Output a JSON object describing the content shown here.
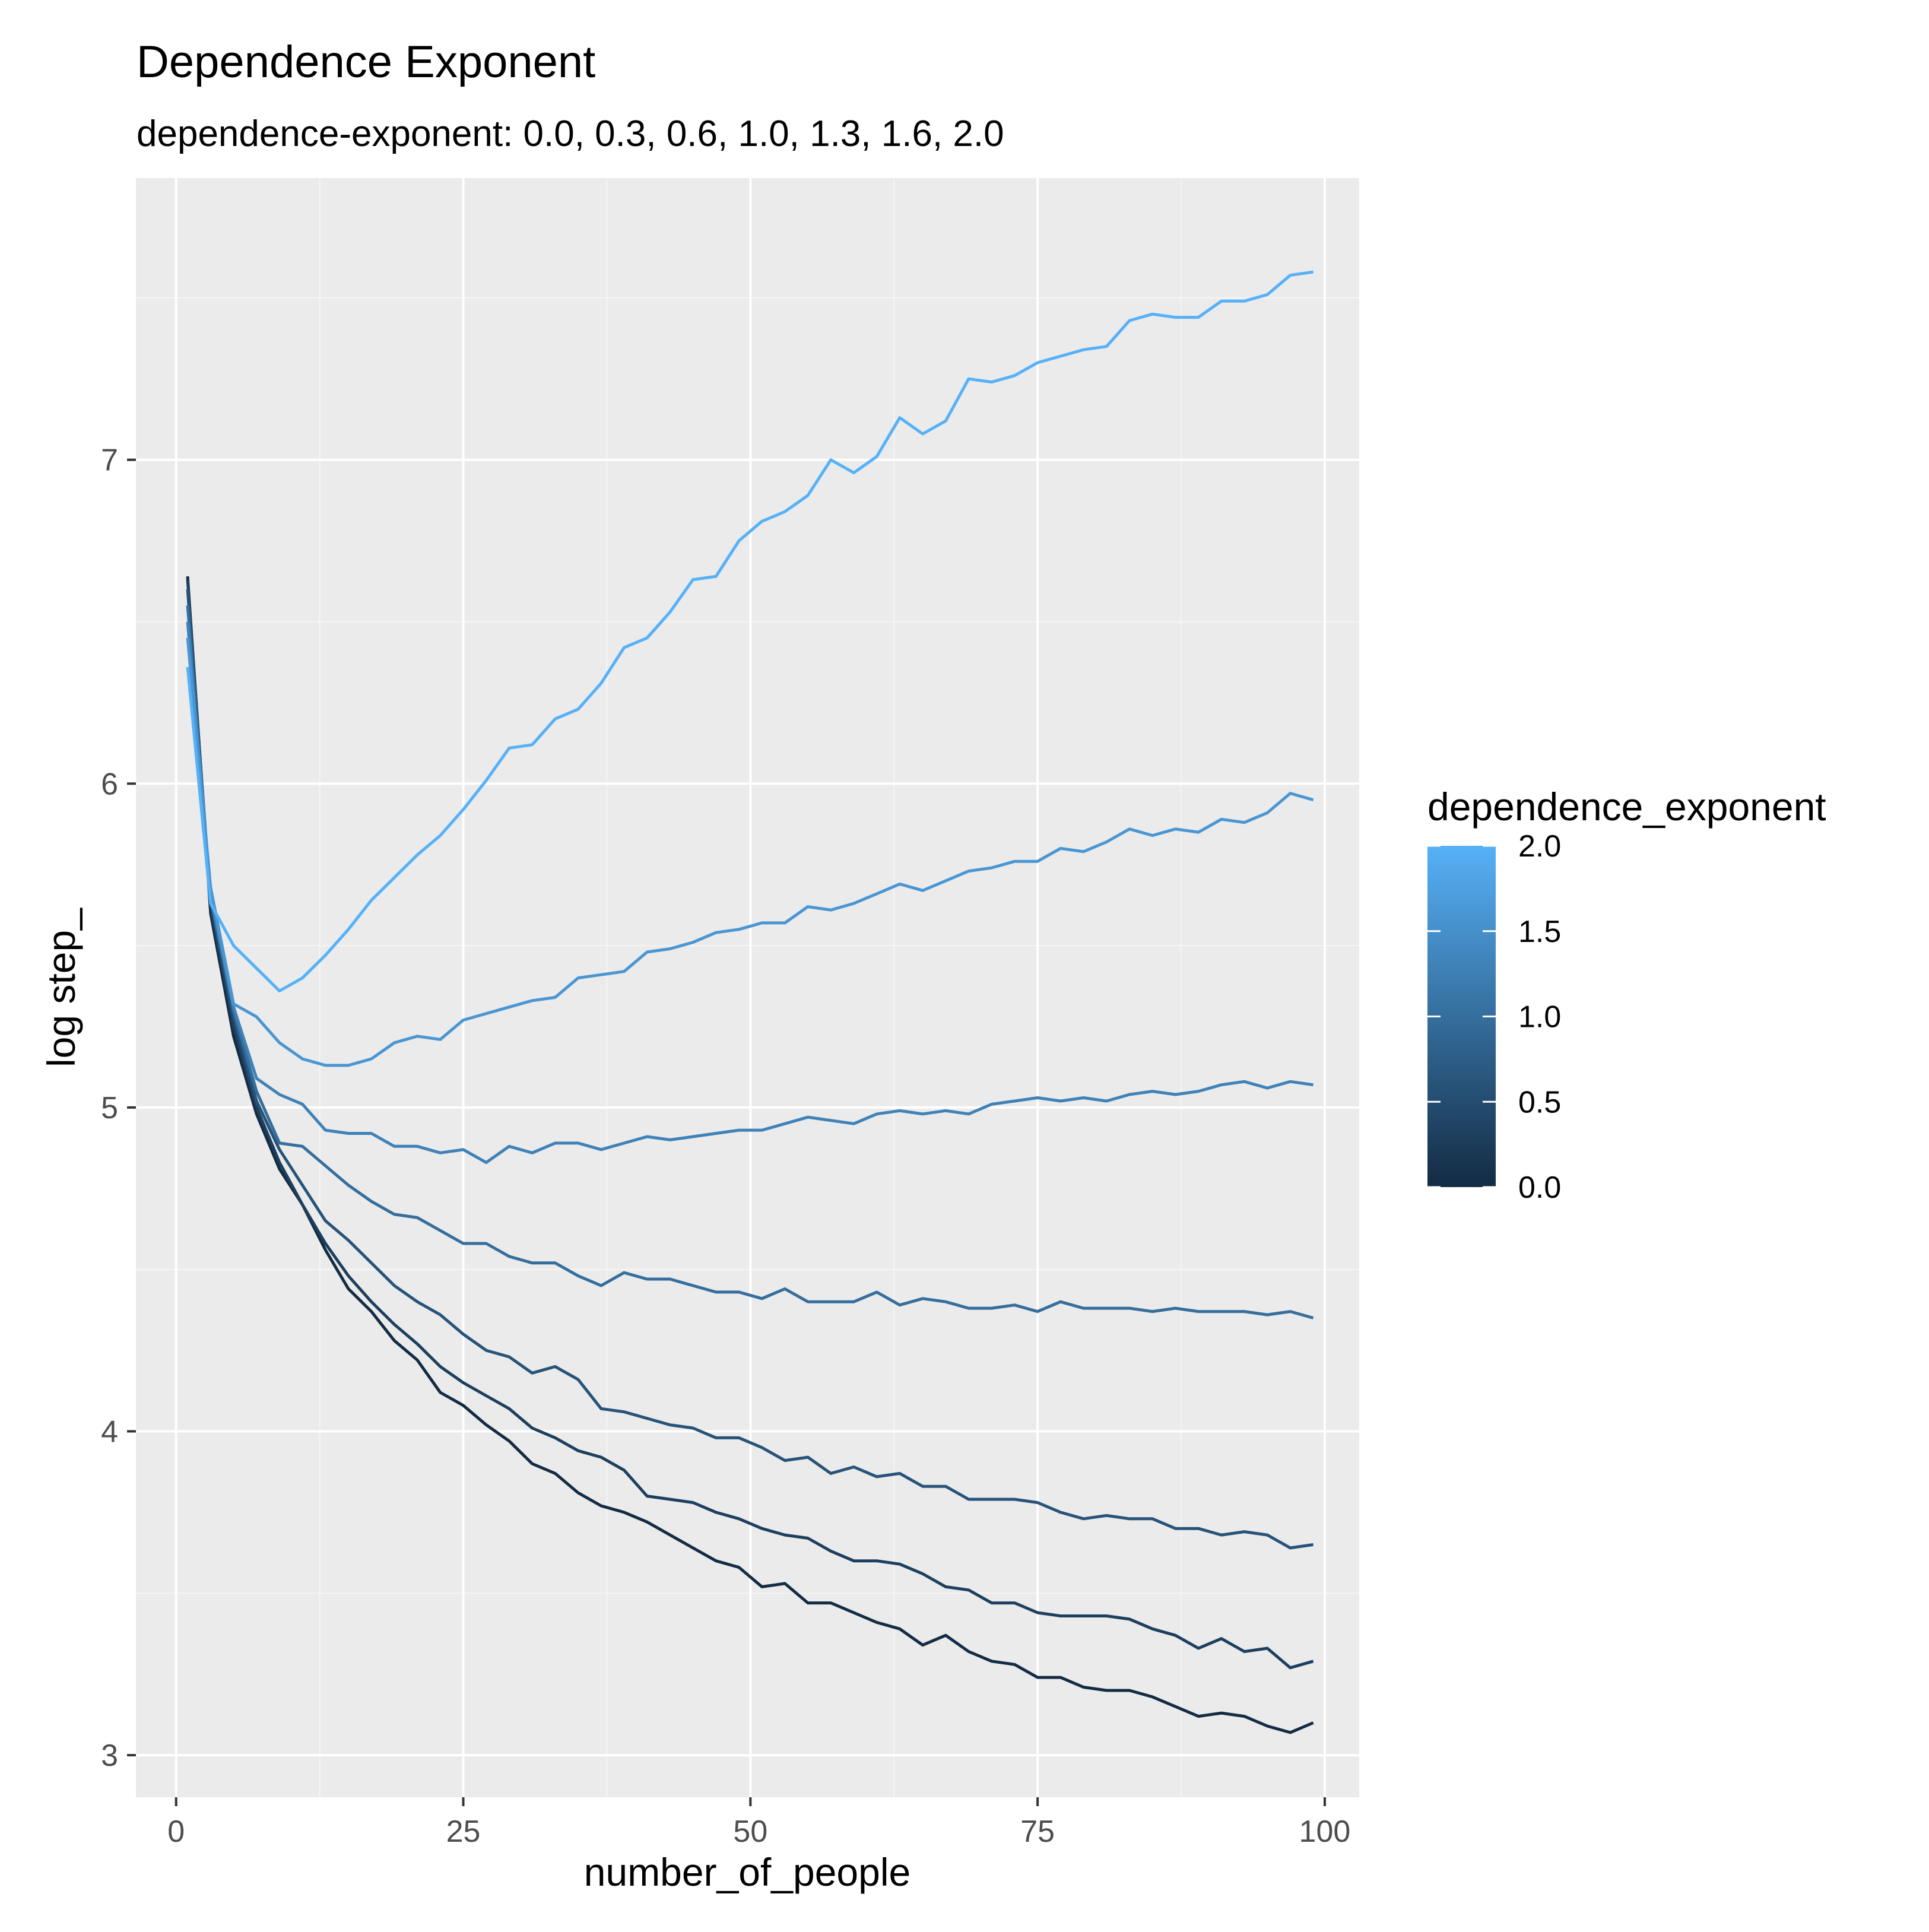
{
  "chart_data": {
    "type": "line",
    "title": "Dependence Exponent",
    "subtitle": "dependence-exponent: 0.0, 0.3, 0.6, 1.0, 1.3, 1.6, 2.0",
    "xlabel": "number_of_people",
    "ylabel": "log step_",
    "xlim": [
      -3.5,
      103
    ],
    "ylim": [
      2.87,
      7.87
    ],
    "x_ticks": [
      0,
      25,
      50,
      75,
      100
    ],
    "x_tick_labels": [
      "0",
      "25",
      "50",
      "75",
      "100"
    ],
    "y_ticks": [
      3,
      4,
      5,
      6,
      7
    ],
    "y_tick_labels": [
      "3",
      "4",
      "5",
      "6",
      "7"
    ],
    "grid": true,
    "legend": {
      "title": "dependence_exponent",
      "placement": "right",
      "type": "colorbar",
      "range": [
        0.0,
        2.0
      ],
      "tick_values": [
        2.0,
        1.5,
        1.0,
        0.5,
        0.0
      ],
      "tick_labels": [
        "2.0",
        "1.5",
        "1.0",
        "0.5",
        "0.0"
      ],
      "low_color": "#132B43",
      "high_color": "#56B1F7"
    },
    "colors": {
      "panel_background": "#EBEBEB",
      "grid_major": "#FFFFFF",
      "grid_minor": "#F5F5F5",
      "axis_text": "#4D4D4D",
      "tick": "#333333",
      "text": "#000000"
    },
    "x": [
      1,
      3,
      5,
      7,
      9,
      11,
      13,
      15,
      17,
      19,
      21,
      23,
      25,
      27,
      29,
      31,
      33,
      35,
      37,
      39,
      41,
      43,
      45,
      47,
      49,
      51,
      53,
      55,
      57,
      59,
      61,
      63,
      65,
      67,
      69,
      71,
      73,
      75,
      77,
      79,
      81,
      83,
      85,
      87,
      89,
      91,
      93,
      95,
      97,
      99
    ],
    "series": [
      {
        "dependence_exponent": 0.0,
        "values": [
          6.64,
          5.6,
          5.22,
          4.98,
          4.81,
          4.7,
          4.56,
          4.44,
          4.37,
          4.28,
          4.22,
          4.12,
          4.08,
          4.02,
          3.97,
          3.9,
          3.87,
          3.81,
          3.77,
          3.75,
          3.72,
          3.68,
          3.64,
          3.6,
          3.58,
          3.52,
          3.53,
          3.47,
          3.47,
          3.44,
          3.41,
          3.39,
          3.34,
          3.37,
          3.32,
          3.29,
          3.28,
          3.24,
          3.24,
          3.21,
          3.2,
          3.2,
          3.18,
          3.15,
          3.12,
          3.13,
          3.12,
          3.09,
          3.07,
          3.1
        ]
      },
      {
        "dependence_exponent": 0.3,
        "values": [
          6.63,
          5.62,
          5.25,
          5.0,
          4.83,
          4.7,
          4.58,
          4.48,
          4.4,
          4.33,
          4.27,
          4.2,
          4.15,
          4.11,
          4.07,
          4.01,
          3.98,
          3.94,
          3.92,
          3.88,
          3.8,
          3.79,
          3.78,
          3.75,
          3.73,
          3.7,
          3.68,
          3.67,
          3.63,
          3.6,
          3.6,
          3.59,
          3.56,
          3.52,
          3.51,
          3.47,
          3.47,
          3.44,
          3.43,
          3.43,
          3.43,
          3.42,
          3.39,
          3.37,
          3.33,
          3.36,
          3.32,
          3.33,
          3.27,
          3.29
        ]
      },
      {
        "dependence_exponent": 0.6,
        "values": [
          6.6,
          5.64,
          5.28,
          5.02,
          4.87,
          4.76,
          4.65,
          4.59,
          4.52,
          4.45,
          4.4,
          4.36,
          4.3,
          4.25,
          4.23,
          4.18,
          4.2,
          4.16,
          4.07,
          4.06,
          4.04,
          4.02,
          4.01,
          3.98,
          3.98,
          3.95,
          3.91,
          3.92,
          3.87,
          3.89,
          3.86,
          3.87,
          3.83,
          3.83,
          3.79,
          3.79,
          3.79,
          3.78,
          3.75,
          3.73,
          3.74,
          3.73,
          3.73,
          3.7,
          3.7,
          3.68,
          3.69,
          3.68,
          3.64,
          3.65
        ]
      },
      {
        "dependence_exponent": 1.0,
        "values": [
          6.55,
          5.65,
          5.3,
          5.05,
          4.89,
          4.88,
          4.82,
          4.76,
          4.71,
          4.67,
          4.66,
          4.62,
          4.58,
          4.58,
          4.54,
          4.52,
          4.52,
          4.48,
          4.45,
          4.49,
          4.47,
          4.47,
          4.45,
          4.43,
          4.43,
          4.41,
          4.44,
          4.4,
          4.4,
          4.4,
          4.43,
          4.39,
          4.41,
          4.4,
          4.38,
          4.38,
          4.39,
          4.37,
          4.4,
          4.38,
          4.38,
          4.38,
          4.37,
          4.38,
          4.37,
          4.37,
          4.37,
          4.36,
          4.37,
          4.35
        ]
      },
      {
        "dependence_exponent": 1.3,
        "values": [
          6.5,
          5.66,
          5.31,
          5.09,
          5.04,
          5.01,
          4.93,
          4.92,
          4.92,
          4.88,
          4.88,
          4.86,
          4.87,
          4.83,
          4.88,
          4.86,
          4.89,
          4.89,
          4.87,
          4.89,
          4.91,
          4.9,
          4.91,
          4.92,
          4.93,
          4.93,
          4.95,
          4.97,
          4.96,
          4.95,
          4.98,
          4.99,
          4.98,
          4.99,
          4.98,
          5.01,
          5.02,
          5.03,
          5.02,
          5.03,
          5.02,
          5.04,
          5.05,
          5.04,
          5.05,
          5.07,
          5.08,
          5.06,
          5.08,
          5.07
        ]
      },
      {
        "dependence_exponent": 1.6,
        "values": [
          6.45,
          5.68,
          5.32,
          5.28,
          5.2,
          5.15,
          5.13,
          5.13,
          5.15,
          5.2,
          5.22,
          5.21,
          5.27,
          5.29,
          5.31,
          5.33,
          5.34,
          5.4,
          5.41,
          5.42,
          5.48,
          5.49,
          5.51,
          5.54,
          5.55,
          5.57,
          5.57,
          5.62,
          5.61,
          5.63,
          5.66,
          5.69,
          5.67,
          5.7,
          5.73,
          5.74,
          5.76,
          5.76,
          5.8,
          5.79,
          5.82,
          5.86,
          5.84,
          5.86,
          5.85,
          5.89,
          5.88,
          5.91,
          5.97,
          5.95
        ]
      },
      {
        "dependence_exponent": 2.0,
        "values": [
          6.36,
          5.63,
          5.5,
          5.43,
          5.36,
          5.4,
          5.47,
          5.55,
          5.64,
          5.71,
          5.78,
          5.84,
          5.92,
          6.01,
          6.11,
          6.12,
          6.2,
          6.23,
          6.31,
          6.42,
          6.45,
          6.53,
          6.63,
          6.64,
          6.75,
          6.81,
          6.84,
          6.89,
          7.0,
          6.96,
          7.01,
          7.13,
          7.08,
          7.12,
          7.25,
          7.24,
          7.26,
          7.3,
          7.32,
          7.34,
          7.35,
          7.43,
          7.45,
          7.44,
          7.44,
          7.49,
          7.49,
          7.51,
          7.57,
          7.58
        ]
      }
    ]
  }
}
